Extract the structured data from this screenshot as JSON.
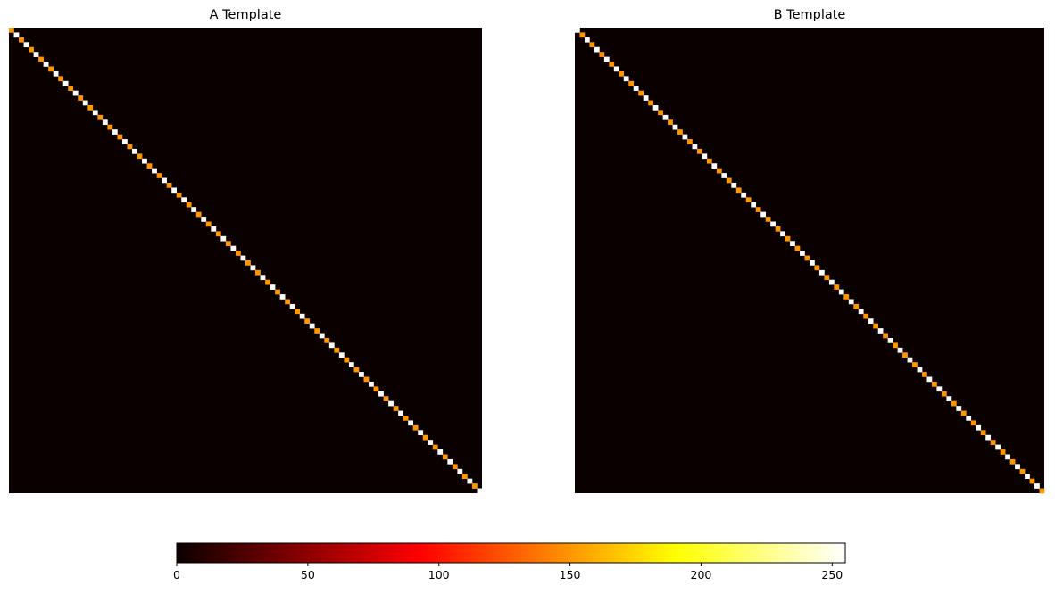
{
  "chart_data": [
    {
      "type": "heatmap",
      "title": "A Template",
      "grid": false,
      "axes": "off",
      "colormap": "hot",
      "diagonal_pattern": [
        150,
        255
      ],
      "diagonal_pattern_start": 150,
      "rows": 96,
      "cols": 96,
      "background_value": 3
    },
    {
      "type": "heatmap",
      "title": "B Template",
      "grid": false,
      "axes": "off",
      "colormap": "hot",
      "diagonal_pattern": [
        255,
        150
      ],
      "diagonal_pattern_start": 255,
      "rows": 96,
      "cols": 96,
      "background_value": 3
    }
  ],
  "colorbar": {
    "min": 0,
    "max": 255,
    "ticks": [
      "0",
      "50",
      "100",
      "150",
      "200",
      "250"
    ],
    "tick_values": [
      0,
      50,
      100,
      150,
      200,
      250
    ],
    "colormap": "hot",
    "orientation": "horizontal"
  }
}
